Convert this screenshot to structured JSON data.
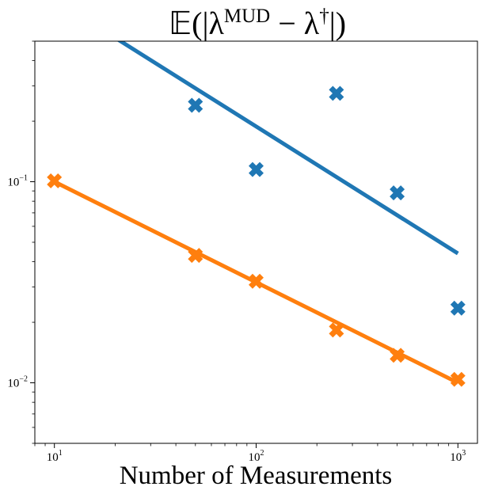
{
  "chart_data": {
    "type": "scatter",
    "title": {
      "parts": [
        {
          "text": "𝔼(|λ",
          "sup": false
        },
        {
          "text": "MUD",
          "sup": true
        },
        {
          "text": " − λ",
          "sup": false
        },
        {
          "text": "†",
          "sup": true
        },
        {
          "text": "|)",
          "sup": false
        }
      ]
    },
    "xlabel": "Number of Measurements",
    "ylabel": "",
    "xscale": "log",
    "yscale": "log",
    "xlim": [
      8,
      1250
    ],
    "ylim": [
      0.005,
      0.5
    ],
    "xticks": [
      {
        "value": 10,
        "base": "10",
        "exp": "1"
      },
      {
        "value": 100,
        "base": "10",
        "exp": "2"
      },
      {
        "value": 1000,
        "base": "10",
        "exp": "3"
      }
    ],
    "yticks": [
      {
        "value": 0.01,
        "base": "10",
        "exp": "−2"
      },
      {
        "value": 0.1,
        "base": "10",
        "exp": "−1"
      }
    ],
    "grid": false,
    "series": [
      {
        "color": "#1f77b4",
        "markers": {
          "x": [
            50,
            100,
            250,
            500,
            1000
          ],
          "y": [
            0.24,
            0.115,
            0.275,
            0.088,
            0.0235
          ]
        },
        "fit_line": {
          "x": [
            20,
            1000
          ],
          "y": [
            0.52,
            0.044
          ]
        }
      },
      {
        "color": "#ff7f0e",
        "markers": {
          "x": [
            10,
            50,
            100,
            250,
            500,
            1000
          ],
          "y": [
            0.101,
            0.043,
            0.032,
            0.0183,
            0.0137,
            0.0104
          ]
        },
        "fit_line": {
          "x": [
            10,
            1000
          ],
          "y": [
            0.1,
            0.01
          ]
        }
      }
    ]
  }
}
